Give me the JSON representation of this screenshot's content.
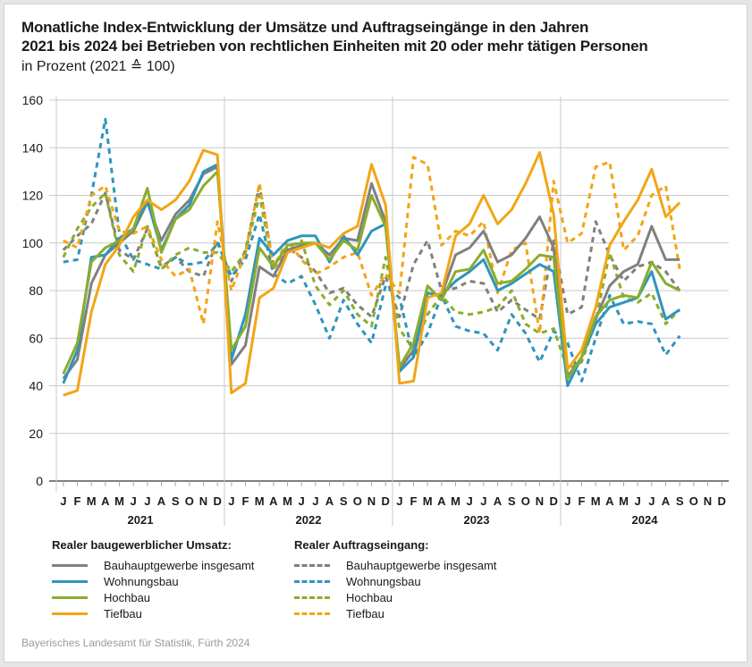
{
  "chart_data": {
    "type": "line",
    "title": "Monatliche Index-Entwicklung der Umsätze und Auftragseingänge in den Jahren 2021 bis 2024 bei Betrieben von rechtlichen Einheiten mit 20 oder mehr tätigen Personen",
    "title_lines": [
      "Monatliche Index-Entwicklung der Umsätze und Auftragseingänge in den Jahren",
      "2021 bis 2024 bei Betrieben von rechtlichen Einheiten mit 20 oder mehr tätigen Personen"
    ],
    "subtitle": "in Prozent (2021 ≙ 100)",
    "xlabel": "",
    "ylabel": "",
    "ylim": [
      0,
      160
    ],
    "yticks": [
      0,
      20,
      40,
      60,
      80,
      100,
      120,
      140,
      160
    ],
    "grid": true,
    "years": [
      "2021",
      "2022",
      "2023",
      "2024"
    ],
    "month_labels": [
      "J",
      "F",
      "M",
      "A",
      "M",
      "J",
      "J",
      "A",
      "S",
      "O",
      "N",
      "D"
    ],
    "series": [
      {
        "name": "Bauhauptgewerbe insgesamt",
        "group": "umsatz",
        "style": "solid",
        "color": "#808080",
        "values": [
          43,
          51,
          83,
          95,
          100,
          105,
          117,
          101,
          112,
          118,
          129,
          132,
          49,
          57,
          90,
          86,
          97,
          99,
          100,
          95,
          102,
          101,
          125,
          109,
          47,
          55,
          79,
          78,
          95,
          98,
          105,
          92,
          95,
          102,
          111,
          98,
          44,
          52,
          68,
          82,
          88,
          91,
          107,
          93,
          93,
          null,
          null,
          null
        ]
      },
      {
        "name": "Wohnungsbau",
        "group": "umsatz",
        "style": "solid",
        "color": "#2e95bd",
        "values": [
          41,
          55,
          94,
          95,
          102,
          106,
          118,
          97,
          110,
          116,
          130,
          133,
          51,
          70,
          102,
          95,
          101,
          103,
          103,
          92,
          103,
          95,
          105,
          108,
          46,
          52,
          79,
          78,
          84,
          88,
          93,
          80,
          83,
          87,
          91,
          88,
          40,
          52,
          66,
          73,
          75,
          77,
          88,
          68,
          72,
          null,
          null,
          null
        ]
      },
      {
        "name": "Hochbau",
        "group": "umsatz",
        "style": "solid",
        "color": "#8aad2c",
        "values": [
          45,
          58,
          92,
          98,
          101,
          106,
          123,
          96,
          110,
          114,
          124,
          130,
          55,
          65,
          98,
          90,
          99,
          100,
          100,
          93,
          101,
          97,
          120,
          107,
          48,
          58,
          82,
          76,
          88,
          89,
          97,
          83,
          84,
          89,
          95,
          94,
          43,
          52,
          69,
          76,
          78,
          77,
          92,
          83,
          80,
          null,
          null,
          null
        ]
      },
      {
        "name": "Tiefbau",
        "group": "umsatz",
        "style": "solid",
        "color": "#f2a516",
        "values": [
          36,
          38,
          71,
          91,
          99,
          111,
          118,
          114,
          118,
          126,
          139,
          137,
          37,
          41,
          77,
          81,
          96,
          98,
          100,
          98,
          104,
          107,
          133,
          116,
          41,
          42,
          77,
          79,
          103,
          108,
          120,
          108,
          114,
          125,
          138,
          112,
          47,
          55,
          73,
          99,
          109,
          118,
          131,
          111,
          117,
          null,
          null,
          null
        ]
      },
      {
        "name": "Bauhauptgewerbe insgesamt",
        "group": "auftrag",
        "style": "dashed",
        "color": "#808080",
        "values": [
          97,
          103,
          108,
          121,
          97,
          93,
          106,
          90,
          94,
          88,
          86,
          101,
          84,
          97,
          124,
          91,
          98,
          94,
          88,
          79,
          81,
          74,
          69,
          86,
          69,
          91,
          101,
          80,
          81,
          84,
          83,
          71,
          76,
          72,
          68,
          101,
          70,
          73,
          109,
          95,
          84,
          90,
          92,
          88,
          80,
          null,
          null,
          null
        ]
      },
      {
        "name": "Wohnungsbau",
        "group": "auftrag",
        "style": "dashed",
        "color": "#2e95bd",
        "values": [
          92,
          93,
          120,
          152,
          104,
          93,
          91,
          89,
          94,
          91,
          92,
          100,
          86,
          93,
          112,
          87,
          83,
          86,
          74,
          60,
          76,
          66,
          58,
          82,
          77,
          52,
          62,
          78,
          65,
          63,
          62,
          55,
          70,
          62,
          50,
          63,
          58,
          42,
          60,
          78,
          66,
          67,
          66,
          53,
          61,
          null,
          null,
          null
        ]
      },
      {
        "name": "Hochbau",
        "group": "auftrag",
        "style": "dashed",
        "color": "#8aad2c",
        "values": [
          94,
          106,
          115,
          121,
          95,
          88,
          107,
          89,
          95,
          98,
          96,
          96,
          88,
          96,
          120,
          89,
          98,
          101,
          82,
          74,
          80,
          70,
          65,
          94,
          64,
          55,
          70,
          78,
          71,
          70,
          71,
          73,
          80,
          66,
          62,
          64,
          47,
          50,
          67,
          96,
          77,
          75,
          79,
          66,
          72,
          null,
          null,
          null
        ]
      },
      {
        "name": "Tiefbau",
        "group": "auftrag",
        "style": "dashed",
        "color": "#f2a516",
        "values": [
          101,
          98,
          120,
          124,
          105,
          104,
          107,
          93,
          86,
          89,
          66,
          109,
          80,
          96,
          125,
          90,
          101,
          93,
          87,
          90,
          94,
          96,
          78,
          87,
          79,
          136,
          133,
          99,
          105,
          103,
          109,
          79,
          97,
          100,
          62,
          126,
          100,
          104,
          132,
          134,
          97,
          103,
          120,
          124,
          89,
          null,
          null,
          null
        ]
      }
    ]
  },
  "legend": {
    "umsatz_heading": "Realer baugewerblicher Umsatz:",
    "auftrag_heading": "Realer Auftragseingang:",
    "umsatz_items": [
      "Bauhauptgewerbe insgesamt",
      "Wohnungsbau",
      "Hochbau",
      "Tiefbau"
    ],
    "auftrag_items": [
      "Bauhauptgewerbe insgesamt",
      "Wohnungsbau",
      "Hochbau",
      "Tiefbau"
    ]
  },
  "source": "Bayerisches Landesamt für Statistik, Fürth 2024"
}
